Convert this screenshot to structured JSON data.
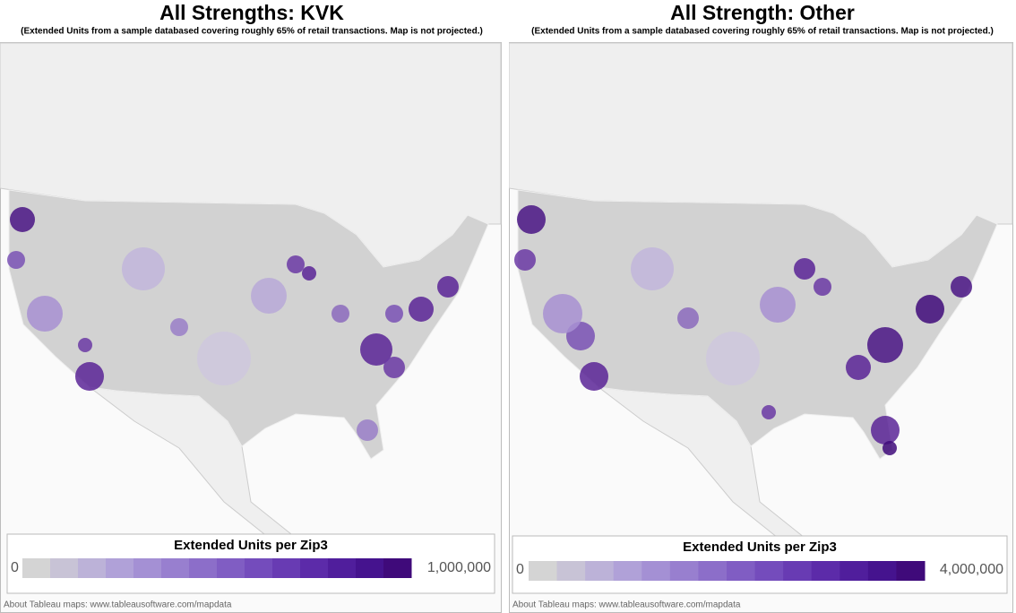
{
  "panels": [
    {
      "title": "All Strengths: KVK",
      "subtitle": "(Extended Units from a sample databased covering roughly 65% of retail transactions. Map is not projected.)",
      "legend": {
        "title": "Extended Units per Zip3",
        "min_label": "0",
        "max_label": "1,000,000"
      },
      "attribution": "About Tableau maps: www.tableausoftware.com/mapdata"
    },
    {
      "title": "All Strength: Other",
      "subtitle": "(Extended Units from a sample databased covering roughly 65% of retail transactions. Map is not projected.)",
      "legend": {
        "title": "Extended Units per Zip3",
        "min_label": "0",
        "max_label": "4,000,000"
      },
      "attribution": "About Tableau maps: www.tableausoftware.com/mapdata"
    }
  ]
}
